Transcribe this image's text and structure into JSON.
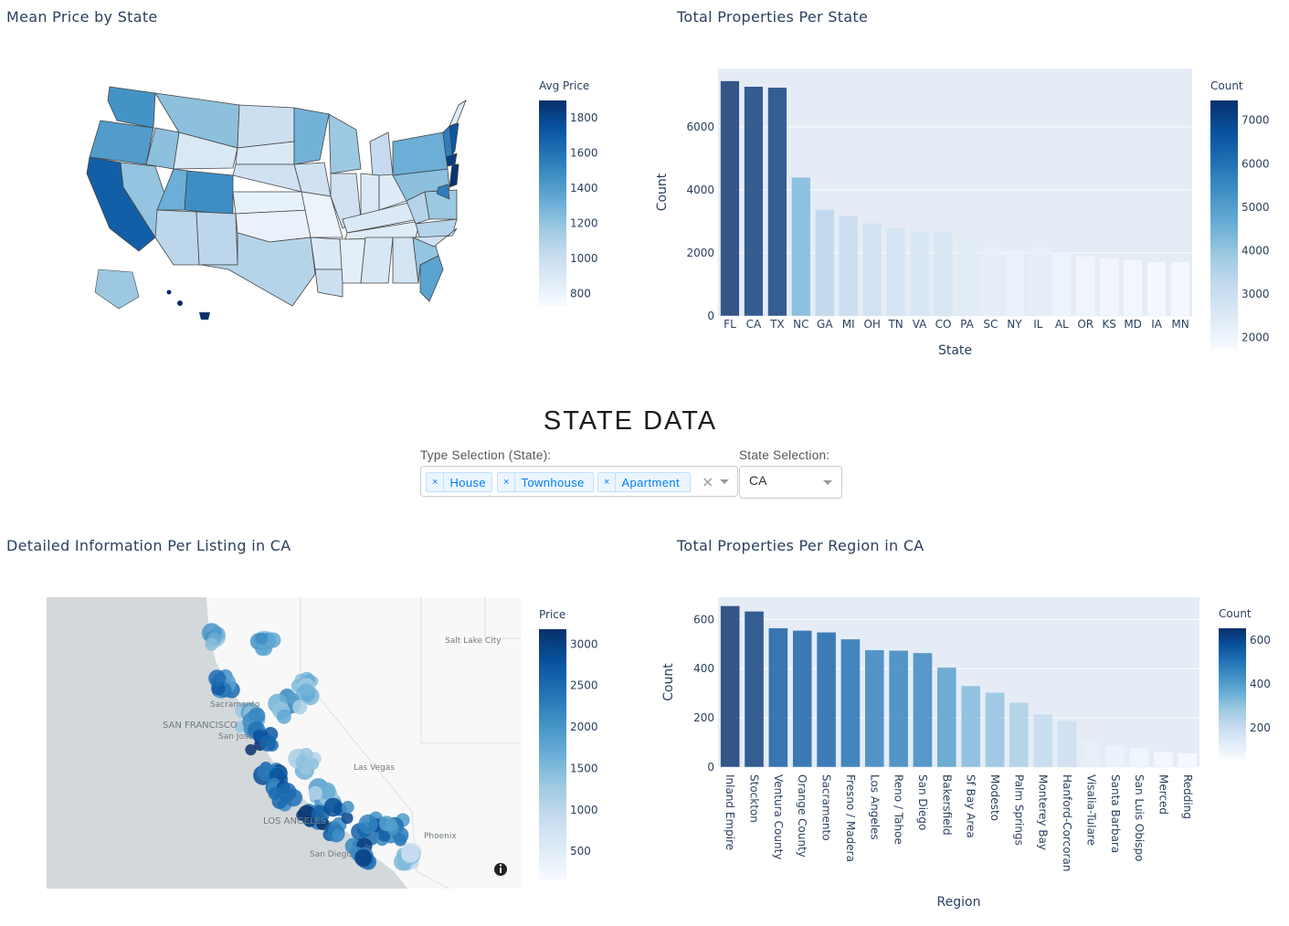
{
  "titles": {
    "map1": "Mean Price by State",
    "bar1": "Total Properties Per State",
    "section": "STATE DATA",
    "map2": "Detailed Information Per Listing in CA",
    "bar2": "Total Properties Per Region in CA"
  },
  "controls": {
    "type_label": "Type Selection (State):",
    "type_values": [
      "House",
      "Townhouse",
      "Apartment"
    ],
    "remove_glyph": "×",
    "clear_glyph": "×",
    "state_label": "State Selection:",
    "state_value": "CA"
  },
  "colors": {
    "plot_bg": "#e5ecf6",
    "scale": [
      "#f7fbff",
      "#deebf7",
      "#c6dbef",
      "#9ecae1",
      "#6baed6",
      "#4292c6",
      "#2171b5",
      "#08519c",
      "#08306b"
    ]
  },
  "chart_data": [
    {
      "type": "choropleth",
      "title": "Mean Price by State",
      "colorbar": {
        "title": "Avg Price",
        "ticks": [
          "800",
          "1000",
          "1200",
          "1400",
          "1600",
          "1800"
        ],
        "range": [
          730,
          1900
        ]
      }
    },
    {
      "type": "bar",
      "title": "Total Properties Per State",
      "xlabel": "State",
      "ylabel": "Count",
      "categories": [
        "FL",
        "CA",
        "TX",
        "NC",
        "GA",
        "MI",
        "OH",
        "TN",
        "VA",
        "CO",
        "PA",
        "SC",
        "NY",
        "IL",
        "AL",
        "OR",
        "KS",
        "MD",
        "IA",
        "MN"
      ],
      "values": [
        7457,
        7280,
        7250,
        4400,
        3380,
        3175,
        2940,
        2800,
        2680,
        2680,
        2390,
        2210,
        2070,
        2210,
        2010,
        1890,
        1835,
        1780,
        1720,
        1720
      ],
      "ylim": [
        0,
        7850
      ],
      "yticks": [
        "0",
        "2000",
        "4000",
        "6000"
      ],
      "colorbar": {
        "title": "Count",
        "ticks": [
          "2000",
          "3000",
          "4000",
          "5000",
          "6000",
          "7000"
        ],
        "range": [
          1720,
          7457
        ]
      }
    },
    {
      "type": "scatter_mapbox",
      "title": "Detailed Information Per Listing in CA",
      "map_labels": [
        "Salt Lake City",
        "Sacramento",
        "SAN FRANCISCO",
        "San Jose",
        "Las Vegas",
        "LOS ANGELES",
        "Phoenix",
        "San Diego"
      ],
      "colorbar": {
        "title": "Price",
        "ticks": [
          "500",
          "1000",
          "1500",
          "2000",
          "2500",
          "3000"
        ],
        "range": [
          150,
          3180
        ]
      }
    },
    {
      "type": "bar",
      "title": "Total Properties Per Region in CA",
      "xlabel": "Region",
      "ylabel": "Count",
      "categories": [
        "Inland Empire",
        "Stockton",
        "Ventura County",
        "Orange County",
        "Sacramento",
        "Fresno / Madera",
        "Los Angeles",
        "Reno / Tahoe",
        "San Diego",
        "Bakersfield",
        "Sf Bay Area",
        "Modesto",
        "Palm Springs",
        "Monterey Bay",
        "Hanford-Corcoran",
        "Visalia-Tulare",
        "Santa Barbara",
        "San Luis Obispo",
        "Merced",
        "Redding"
      ],
      "values": [
        655,
        633,
        565,
        555,
        548,
        520,
        476,
        474,
        464,
        405,
        330,
        303,
        262,
        215,
        188,
        105,
        88,
        78,
        64,
        57
      ],
      "ylim": [
        0,
        690
      ],
      "yticks": [
        "0",
        "200",
        "400",
        "600"
      ],
      "colorbar": {
        "title": "Count",
        "ticks": [
          "200",
          "400",
          "600"
        ],
        "range": [
          57,
          655
        ]
      }
    }
  ]
}
